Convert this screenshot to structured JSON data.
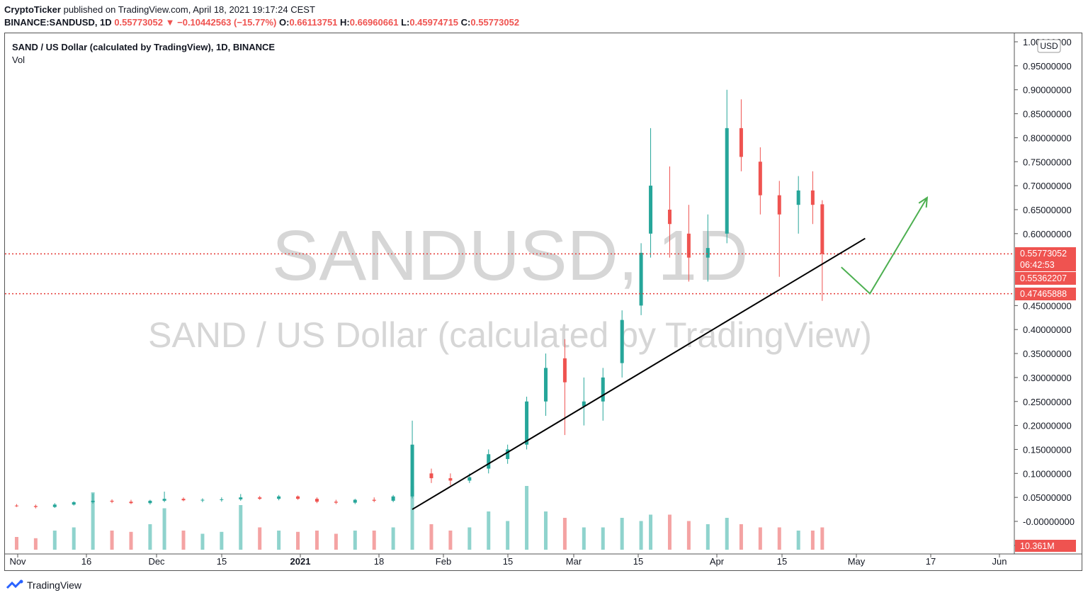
{
  "header": {
    "author": "CryptoTicker",
    "published_text": "published on TradingView.com, April 18, 2021 19:17:24 CEST",
    "symbol": "BINANCE:SANDUSD, 1D",
    "last": "0.55773052",
    "change": "−0.10442563 (−15.77%)",
    "o_label": "O:",
    "o": "0.66113751",
    "h_label": "H:",
    "h": "0.66960661",
    "l_label": "L:",
    "l": "0.45974715",
    "c_label": "C:",
    "c": "0.55773052"
  },
  "legend": {
    "title": "SAND / US Dollar (calculated by TradingView), 1D, BINANCE",
    "vol": "Vol"
  },
  "watermark": {
    "symbol": "SANDUSD, 1D",
    "description": "SAND / US Dollar (calculated by TradingView)"
  },
  "currency": "USD",
  "price_tags": {
    "last": "0.55773052",
    "countdown": "06:42:53",
    "level2": "0.55362207",
    "support": "0.47465888",
    "volume": "10.361M"
  },
  "footer": {
    "brand": "TradingView"
  },
  "colors": {
    "up": "#26a69a",
    "down": "#ef5350",
    "vol_up": "#8fd3cd",
    "vol_down": "#f4a3a3",
    "trendline": "#000000",
    "arrow": "#4caf50"
  },
  "chart_data": {
    "type": "candlestick",
    "y_ticks": [
      "1.00000000",
      "0.95000000",
      "0.90000000",
      "0.85000000",
      "0.80000000",
      "0.75000000",
      "0.70000000",
      "0.65000000",
      "0.60000000",
      "0.45000000",
      "0.40000000",
      "0.35000000",
      "0.30000000",
      "0.25000000",
      "0.20000000",
      "0.15000000",
      "0.10000000",
      "0.05000000",
      "-0.00000000",
      "0.00000000"
    ],
    "x_ticks": [
      "Nov",
      "16",
      "Dec",
      "15",
      "2021",
      "18",
      "Feb",
      "15",
      "Mar",
      "15",
      "Apr",
      "15",
      "May",
      "17",
      "Jun"
    ],
    "ylim": [
      -0.05,
      1.0
    ],
    "horizontal_levels": [
      0.5577,
      0.4747
    ],
    "trendline": [
      [
        "2021-01-21",
        0.025
      ],
      [
        "2021-04-26",
        0.59
      ]
    ],
    "projection_arrow": [
      [
        "2021-04-21",
        0.53
      ],
      [
        "2021-04-27",
        0.475
      ],
      [
        "2021-05-09",
        0.675
      ]
    ],
    "candles": [
      {
        "t": "2020-10-30",
        "o": 0.033,
        "h": 0.036,
        "l": 0.03,
        "c": 0.032,
        "v": 0.2
      },
      {
        "t": "2020-11-03",
        "o": 0.032,
        "h": 0.035,
        "l": 0.027,
        "c": 0.03,
        "v": 0.18
      },
      {
        "t": "2020-11-07",
        "o": 0.03,
        "h": 0.038,
        "l": 0.028,
        "c": 0.035,
        "v": 0.3
      },
      {
        "t": "2020-11-11",
        "o": 0.035,
        "h": 0.042,
        "l": 0.033,
        "c": 0.04,
        "v": 0.35
      },
      {
        "t": "2020-11-15",
        "o": 0.04,
        "h": 0.058,
        "l": 0.037,
        "c": 0.043,
        "v": 0.9
      },
      {
        "t": "2020-11-19",
        "o": 0.043,
        "h": 0.046,
        "l": 0.038,
        "c": 0.041,
        "v": 0.3
      },
      {
        "t": "2020-11-23",
        "o": 0.041,
        "h": 0.045,
        "l": 0.036,
        "c": 0.038,
        "v": 0.28
      },
      {
        "t": "2020-11-27",
        "o": 0.038,
        "h": 0.045,
        "l": 0.035,
        "c": 0.043,
        "v": 0.4
      },
      {
        "t": "2020-11-30",
        "o": 0.043,
        "h": 0.062,
        "l": 0.04,
        "c": 0.047,
        "v": 0.65
      },
      {
        "t": "2020-12-04",
        "o": 0.047,
        "h": 0.05,
        "l": 0.042,
        "c": 0.044,
        "v": 0.3
      },
      {
        "t": "2020-12-08",
        "o": 0.044,
        "h": 0.048,
        "l": 0.04,
        "c": 0.045,
        "v": 0.25
      },
      {
        "t": "2020-12-12",
        "o": 0.045,
        "h": 0.05,
        "l": 0.041,
        "c": 0.046,
        "v": 0.28
      },
      {
        "t": "2020-12-16",
        "o": 0.046,
        "h": 0.057,
        "l": 0.043,
        "c": 0.05,
        "v": 0.7
      },
      {
        "t": "2020-12-20",
        "o": 0.05,
        "h": 0.053,
        "l": 0.045,
        "c": 0.047,
        "v": 0.35
      },
      {
        "t": "2020-12-24",
        "o": 0.047,
        "h": 0.055,
        "l": 0.044,
        "c": 0.052,
        "v": 0.3
      },
      {
        "t": "2020-12-28",
        "o": 0.052,
        "h": 0.054,
        "l": 0.045,
        "c": 0.047,
        "v": 0.28
      },
      {
        "t": "2021-01-01",
        "o": 0.047,
        "h": 0.05,
        "l": 0.038,
        "c": 0.041,
        "v": 0.3
      },
      {
        "t": "2021-01-05",
        "o": 0.041,
        "h": 0.045,
        "l": 0.036,
        "c": 0.039,
        "v": 0.25
      },
      {
        "t": "2021-01-09",
        "o": 0.039,
        "h": 0.047,
        "l": 0.036,
        "c": 0.045,
        "v": 0.3
      },
      {
        "t": "2021-01-13",
        "o": 0.045,
        "h": 0.05,
        "l": 0.04,
        "c": 0.043,
        "v": 0.3
      },
      {
        "t": "2021-01-17",
        "o": 0.043,
        "h": 0.055,
        "l": 0.04,
        "c": 0.052,
        "v": 0.35
      },
      {
        "t": "2021-01-21",
        "o": 0.052,
        "h": 0.21,
        "l": 0.048,
        "c": 0.16,
        "v": 1.0
      },
      {
        "t": "2021-01-25",
        "o": 0.1,
        "h": 0.11,
        "l": 0.08,
        "c": 0.09,
        "v": 0.4
      },
      {
        "t": "2021-01-29",
        "o": 0.09,
        "h": 0.1,
        "l": 0.075,
        "c": 0.085,
        "v": 0.3
      },
      {
        "t": "2021-02-02",
        "o": 0.085,
        "h": 0.1,
        "l": 0.08,
        "c": 0.092,
        "v": 0.35
      },
      {
        "t": "2021-02-06",
        "o": 0.11,
        "h": 0.15,
        "l": 0.1,
        "c": 0.14,
        "v": 0.6
      },
      {
        "t": "2021-02-10",
        "o": 0.13,
        "h": 0.16,
        "l": 0.12,
        "c": 0.15,
        "v": 0.45
      },
      {
        "t": "2021-02-14",
        "o": 0.16,
        "h": 0.26,
        "l": 0.15,
        "c": 0.25,
        "v": 1.0
      },
      {
        "t": "2021-02-18",
        "o": 0.25,
        "h": 0.35,
        "l": 0.22,
        "c": 0.32,
        "v": 0.6
      },
      {
        "t": "2021-02-22",
        "o": 0.34,
        "h": 0.38,
        "l": 0.18,
        "c": 0.29,
        "v": 0.5
      },
      {
        "t": "2021-02-26",
        "o": 0.24,
        "h": 0.3,
        "l": 0.2,
        "c": 0.25,
        "v": 0.35
      },
      {
        "t": "2021-03-02",
        "o": 0.25,
        "h": 0.32,
        "l": 0.21,
        "c": 0.3,
        "v": 0.35
      },
      {
        "t": "2021-03-06",
        "o": 0.33,
        "h": 0.44,
        "l": 0.3,
        "c": 0.42,
        "v": 0.5
      },
      {
        "t": "2021-03-10",
        "o": 0.45,
        "h": 0.58,
        "l": 0.43,
        "c": 0.56,
        "v": 0.45
      },
      {
        "t": "2021-03-12",
        "o": 0.6,
        "h": 0.82,
        "l": 0.55,
        "c": 0.7,
        "v": 0.55
      },
      {
        "t": "2021-03-16",
        "o": 0.65,
        "h": 0.74,
        "l": 0.55,
        "c": 0.62,
        "v": 0.55
      },
      {
        "t": "2021-03-20",
        "o": 0.6,
        "h": 0.66,
        "l": 0.5,
        "c": 0.55,
        "v": 0.45
      },
      {
        "t": "2021-03-24",
        "o": 0.55,
        "h": 0.64,
        "l": 0.5,
        "c": 0.57,
        "v": 0.4
      },
      {
        "t": "2021-03-28",
        "o": 0.6,
        "h": 0.9,
        "l": 0.58,
        "c": 0.82,
        "v": 0.5
      },
      {
        "t": "2021-03-31",
        "o": 0.82,
        "h": 0.88,
        "l": 0.73,
        "c": 0.76,
        "v": 0.4
      },
      {
        "t": "2021-04-04",
        "o": 0.75,
        "h": 0.78,
        "l": 0.64,
        "c": 0.68,
        "v": 0.35
      },
      {
        "t": "2021-04-08",
        "o": 0.68,
        "h": 0.71,
        "l": 0.51,
        "c": 0.64,
        "v": 0.35
      },
      {
        "t": "2021-04-12",
        "o": 0.66,
        "h": 0.72,
        "l": 0.6,
        "c": 0.69,
        "v": 0.3
      },
      {
        "t": "2021-04-15",
        "o": 0.69,
        "h": 0.73,
        "l": 0.62,
        "c": 0.66,
        "v": 0.3
      },
      {
        "t": "2021-04-17",
        "o": 0.66113751,
        "h": 0.66960661,
        "l": 0.45974715,
        "c": 0.55773052,
        "v": 0.35
      }
    ]
  }
}
